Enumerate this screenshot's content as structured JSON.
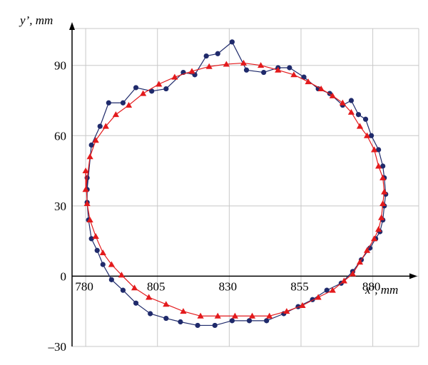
{
  "chart_data": {
    "type": "scatter",
    "xlabel": "x’, mm",
    "ylabel": "y’, mm",
    "xlim": [
      775,
      896
    ],
    "ylim": [
      -30,
      110
    ],
    "x_ticks": [
      {
        "value": 780,
        "label": "780"
      },
      {
        "value": 805,
        "label": "805"
      },
      {
        "value": 830,
        "label": "830"
      },
      {
        "value": 855,
        "label": "855"
      },
      {
        "value": 880,
        "label": "880"
      }
    ],
    "y_ticks": [
      {
        "value": -30,
        "label": "–30"
      },
      {
        "value": 0,
        "label": "0"
      },
      {
        "value": 30,
        "label": "30"
      },
      {
        "value": 60,
        "label": "60"
      },
      {
        "value": 90,
        "label": "90"
      }
    ],
    "x_grid": [
      780,
      805,
      830,
      855,
      880
    ],
    "y_grid": [
      -30,
      0,
      30,
      60,
      90
    ],
    "grid": true,
    "series": [
      {
        "color": "#1f2a6b",
        "marker": "circle",
        "points": [
          [
            780.5,
            37
          ],
          [
            780.5,
            42
          ],
          [
            780.5,
            31.5
          ],
          [
            781,
            24
          ],
          [
            782,
            16
          ],
          [
            784,
            11
          ],
          [
            786,
            5
          ],
          [
            789,
            -1.5
          ],
          [
            793,
            -6
          ],
          [
            797.5,
            -11.5
          ],
          [
            802.5,
            -16
          ],
          [
            808,
            -18
          ],
          [
            813,
            -19.5
          ],
          [
            819,
            -21
          ],
          [
            825,
            -21
          ],
          [
            831,
            -19
          ],
          [
            837,
            -19
          ],
          [
            843,
            -19
          ],
          [
            849,
            -16
          ],
          [
            854,
            -13
          ],
          [
            859,
            -10
          ],
          [
            864,
            -6
          ],
          [
            869,
            -3
          ],
          [
            873,
            2
          ],
          [
            876,
            7
          ],
          [
            879,
            12
          ],
          [
            881,
            16
          ],
          [
            882.5,
            19
          ],
          [
            883.5,
            24
          ],
          [
            884,
            30
          ],
          [
            884.5,
            35
          ],
          [
            884,
            42
          ],
          [
            883.5,
            47
          ],
          [
            882,
            54
          ],
          [
            879.5,
            60
          ],
          [
            877.5,
            67
          ],
          [
            875,
            69
          ],
          [
            872.5,
            75
          ],
          [
            869.5,
            73
          ],
          [
            865,
            78
          ],
          [
            861,
            80
          ],
          [
            856,
            85
          ],
          [
            851,
            89
          ],
          [
            847,
            89
          ],
          [
            842,
            87
          ],
          [
            836,
            88
          ],
          [
            831,
            100
          ],
          [
            826,
            95
          ],
          [
            822,
            94
          ],
          [
            818,
            86
          ],
          [
            814,
            87
          ],
          [
            808,
            80
          ],
          [
            803,
            79
          ],
          [
            797.5,
            80.5
          ],
          [
            793,
            74
          ],
          [
            788,
            74
          ],
          [
            785,
            64
          ],
          [
            782,
            56
          ]
        ]
      },
      {
        "color": "#e31a1c",
        "marker": "triangle",
        "points": [
          [
            780,
            37
          ],
          [
            780,
            45
          ],
          [
            780.5,
            31
          ],
          [
            781.5,
            24
          ],
          [
            783.5,
            17
          ],
          [
            786,
            10
          ],
          [
            789,
            5
          ],
          [
            792.5,
            0.5
          ],
          [
            797,
            -5
          ],
          [
            802,
            -9
          ],
          [
            808,
            -12
          ],
          [
            814,
            -15
          ],
          [
            820,
            -17
          ],
          [
            826,
            -17
          ],
          [
            832,
            -17
          ],
          [
            838,
            -17
          ],
          [
            844,
            -17
          ],
          [
            850,
            -15
          ],
          [
            855.5,
            -12.5
          ],
          [
            861,
            -9
          ],
          [
            866,
            -6
          ],
          [
            870,
            -2
          ],
          [
            873,
            1
          ],
          [
            875.5,
            6
          ],
          [
            878,
            11
          ],
          [
            880.5,
            16
          ],
          [
            882,
            20
          ],
          [
            883,
            25
          ],
          [
            883.5,
            31
          ],
          [
            884,
            36
          ],
          [
            883.5,
            42
          ],
          [
            882,
            47
          ],
          [
            880.5,
            54
          ],
          [
            878,
            60
          ],
          [
            875.5,
            64
          ],
          [
            872.5,
            70
          ],
          [
            869.5,
            74
          ],
          [
            866,
            77
          ],
          [
            862,
            80
          ],
          [
            857.5,
            83
          ],
          [
            852.5,
            86
          ],
          [
            847,
            88
          ],
          [
            841,
            90
          ],
          [
            835,
            91
          ],
          [
            829,
            90.5
          ],
          [
            823,
            89.5
          ],
          [
            817,
            87.5
          ],
          [
            811,
            85
          ],
          [
            805.5,
            82
          ],
          [
            800,
            78
          ],
          [
            795,
            73
          ],
          [
            790.5,
            69
          ],
          [
            787,
            64
          ],
          [
            783.5,
            58
          ],
          [
            781.5,
            51
          ]
        ]
      }
    ]
  }
}
